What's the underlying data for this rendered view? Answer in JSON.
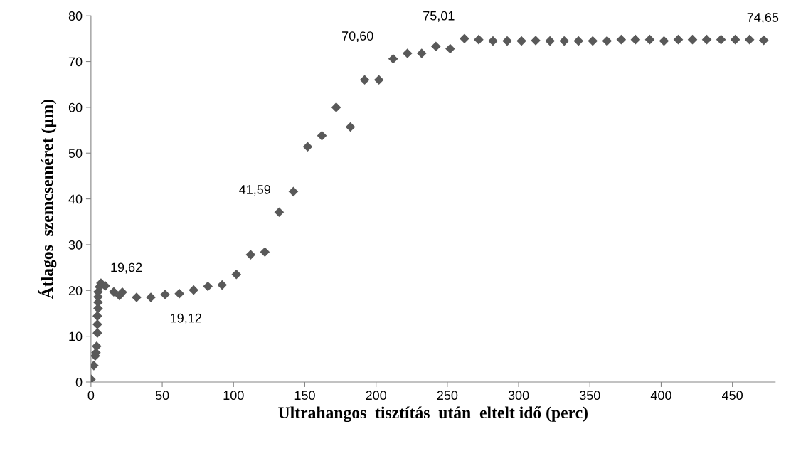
{
  "chart_data": {
    "type": "scatter",
    "xlabel": "Ultrahangos  tisztítás  után  eltelt idő (perc)",
    "ylabel": "Átlagos  szemcseméret (µm)",
    "x": [
      0,
      2,
      3,
      3.5,
      4,
      4.5,
      4.5,
      4.5,
      5,
      5,
      5,
      5,
      6,
      7,
      10,
      16,
      20,
      22,
      32,
      42,
      52,
      62,
      72,
      82,
      92,
      102,
      112,
      122,
      132,
      142,
      152,
      162,
      172,
      182,
      192,
      202,
      212,
      222,
      232,
      242,
      252,
      262,
      272,
      282,
      292,
      302,
      312,
      322,
      332,
      342,
      352,
      362,
      372,
      382,
      392,
      402,
      412,
      422,
      432,
      442,
      452,
      462,
      472
    ],
    "series": [
      {
        "color": "#595959",
        "values": [
          0.6,
          3.6,
          5.7,
          6.4,
          7.8,
          10.7,
          12.6,
          14.4,
          16.1,
          17.4,
          18.6,
          19.7,
          20.8,
          21.6,
          21.0,
          19.7,
          18.9,
          19.62,
          18.5,
          18.5,
          19.12,
          19.3,
          20.1,
          20.9,
          21.2,
          23.5,
          27.8,
          28.4,
          37.1,
          41.59,
          51.4,
          53.8,
          60.0,
          55.7,
          66.0,
          66.0,
          70.6,
          71.8,
          71.8,
          73.3,
          72.8,
          75.01,
          74.8,
          74.5,
          74.5,
          74.5,
          74.6,
          74.5,
          74.5,
          74.5,
          74.5,
          74.5,
          74.8,
          74.8,
          74.8,
          74.5,
          74.8,
          74.8,
          74.8,
          74.8,
          74.8,
          74.8,
          74.65
        ]
      }
    ],
    "annotations": [
      {
        "text": "19,62",
        "x": 22,
        "y": 19.62
      },
      {
        "text": "19,12",
        "x": 52,
        "y": 19.12
      },
      {
        "text": "41,59",
        "x": 142,
        "y": 41.59
      },
      {
        "text": "70,60",
        "x": 212,
        "y": 70.6
      },
      {
        "text": "75,01",
        "x": 262,
        "y": 75.01
      },
      {
        "text": "74,65",
        "x": 472,
        "y": 74.65
      }
    ],
    "xlim": [
      0,
      480
    ],
    "xticks": [
      0,
      50,
      100,
      150,
      200,
      250,
      300,
      350,
      400,
      450
    ],
    "ylim": [
      0,
      80
    ],
    "yticks": [
      0,
      10,
      20,
      30,
      40,
      50,
      60,
      70,
      80
    ],
    "marker": "diamond",
    "grid": false,
    "legend": false
  }
}
